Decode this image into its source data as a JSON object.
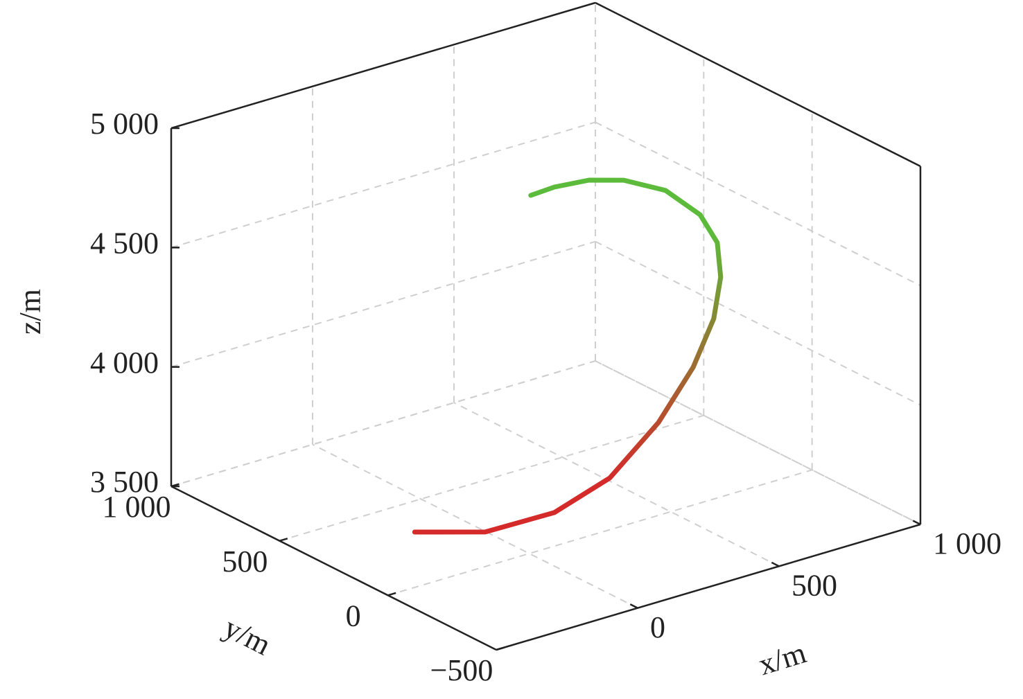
{
  "chart_data": {
    "type": "line3d",
    "x_label": "x/m",
    "y_label": "y/m",
    "z_label": "z/m",
    "xlim": [
      -500,
      1000
    ],
    "ylim": [
      -500,
      1000
    ],
    "zlim": [
      3500,
      5000
    ],
    "xticks": [
      {
        "value": 0,
        "label": "0"
      },
      {
        "value": 500,
        "label": "500"
      },
      {
        "value": 1000,
        "label": "1 000"
      }
    ],
    "yticks": [
      {
        "value": -500,
        "label": "−500"
      },
      {
        "value": 0,
        "label": "0"
      },
      {
        "value": 500,
        "label": "500"
      },
      {
        "value": 1000,
        "label": "1 000"
      }
    ],
    "zticks": [
      {
        "value": 3500,
        "label": "3 500"
      },
      {
        "value": 4000,
        "label": "4 000"
      },
      {
        "value": 4500,
        "label": "4 500"
      },
      {
        "value": 5000,
        "label": "5 000"
      }
    ],
    "grid": true,
    "color_start": "#d42a2a",
    "color_end": "#5cbb3a",
    "x": [
      -160,
      -24,
      163,
      355,
      592,
      788,
      922,
      984,
      992,
      929,
      822,
      658,
      518,
      357,
      236
    ],
    "y": [
      320,
      172,
      97,
      92,
      177,
      272,
      352,
      401,
      427,
      424,
      444,
      423,
      400,
      350,
      301
    ],
    "z": [
      3500,
      3520,
      3570,
      3650,
      3760,
      3880,
      4000,
      4130,
      4260,
      4400,
      4530,
      4640,
      4700,
      4750,
      4780
    ]
  }
}
